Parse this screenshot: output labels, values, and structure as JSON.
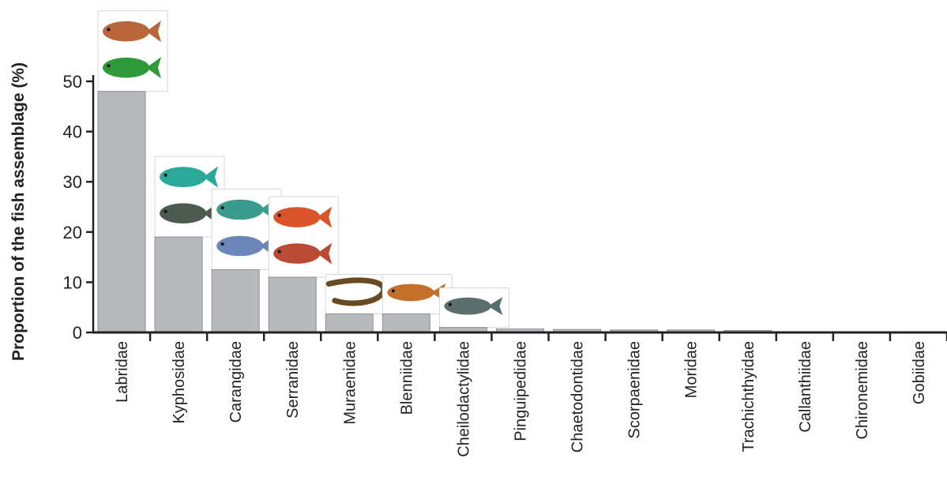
{
  "chart_data": {
    "type": "bar",
    "ylabel": "Proportion of the fish assemblage (%)",
    "xlabel": "",
    "ylim": [
      0,
      50
    ],
    "yticks": [
      0,
      10,
      20,
      30,
      40,
      50
    ],
    "grid": false,
    "bar_color": "#b8b9bd",
    "categories": [
      "Labridae",
      "Kyphosidae",
      "Carangidae",
      "Serranidae",
      "Muraenidae",
      "Blenniidae",
      "Cheilodactylidae",
      "Pinguipedidae",
      "Chaetodontidae",
      "Scorpaenidae",
      "Moridae",
      "Trachichthyidae",
      "Callanthiidae",
      "Chironemidae",
      "Gobiidae"
    ],
    "values": [
      48,
      19,
      12.5,
      11,
      3.7,
      3.7,
      1,
      0.7,
      0.6,
      0.5,
      0.5,
      0.4,
      0.1,
      0.1,
      0.1
    ]
  },
  "fish_images": [
    {
      "category": "Labridae",
      "icons": [
        "wrasse-brown-icon",
        "wrasse-green-icon"
      ],
      "colors": [
        "#b8663a",
        "#2f9a3a"
      ]
    },
    {
      "category": "Kyphosidae",
      "icons": [
        "drummer-teal-icon",
        "drummer-grey-icon"
      ],
      "colors": [
        "#2aa898",
        "#4d5a50"
      ]
    },
    {
      "category": "Carangidae",
      "icons": [
        "trevally-icon",
        "jack-mackerel-icon"
      ],
      "colors": [
        "#3b9b8c",
        "#6d86b8"
      ]
    },
    {
      "category": "Serranidae",
      "icons": [
        "perch-red-icon",
        "perch-banded-icon"
      ],
      "colors": [
        "#d9542a",
        "#b94a36"
      ]
    },
    {
      "category": "Muraenidae",
      "icons": [
        "moray-eel-icon"
      ],
      "colors": [
        "#6a4a22"
      ]
    },
    {
      "category": "Blenniidae",
      "icons": [
        "blenny-icon"
      ],
      "colors": [
        "#c4702a"
      ]
    },
    {
      "category": "Cheilodactylidae",
      "icons": [
        "morwong-icon"
      ],
      "colors": [
        "#5b6e6e"
      ]
    }
  ]
}
